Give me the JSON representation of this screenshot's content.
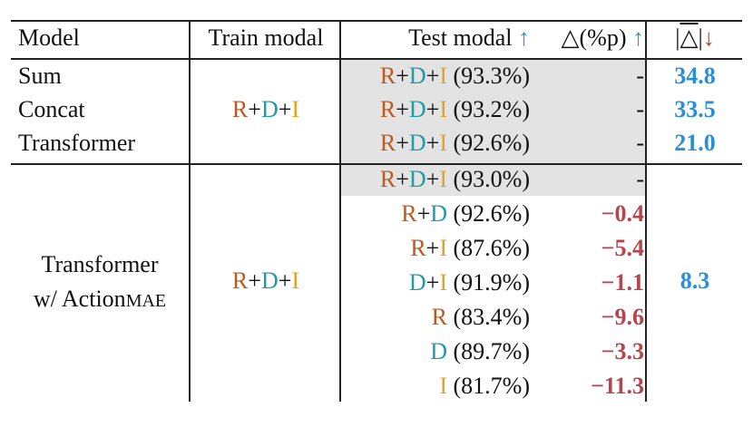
{
  "header": {
    "model": "Model",
    "train_modal": "Train modal",
    "test_modal": "Test modal",
    "test_arrow": "↑",
    "delta": "△(%p)",
    "delta_arrow": "↑",
    "abs_open": "|",
    "abs_symbol": "△",
    "abs_close": "|",
    "abs_arrow": "↓"
  },
  "modalities": {
    "R": "R",
    "D": "D",
    "I": "I",
    "plus": "+"
  },
  "group1": {
    "train": "R+D+I",
    "rows": [
      {
        "model": "Sum",
        "test_acc": "(93.3%)",
        "delta": "-",
        "abs": "34.8"
      },
      {
        "model": "Concat",
        "test_acc": "(93.2%)",
        "delta": "-",
        "abs": "33.5"
      },
      {
        "model": "Transformer",
        "test_acc": "(92.6%)",
        "delta": "-",
        "abs": "21.0"
      }
    ]
  },
  "group2": {
    "model_line1": "Transformer",
    "model_line2_prefix": "w/ Action",
    "model_line2_sc": "MAE",
    "train": "R+D+I",
    "abs": "8.3",
    "rows": [
      {
        "test_acc": "(93.0%)",
        "delta": "-"
      },
      {
        "test_acc": "(92.6%)",
        "delta": "−0.4"
      },
      {
        "test_acc": "(87.6%)",
        "delta": "−5.4"
      },
      {
        "test_acc": "(91.9%)",
        "delta": "−1.1"
      },
      {
        "test_acc": "(83.4%)",
        "delta": "−9.6"
      },
      {
        "test_acc": "(89.7%)",
        "delta": "−3.3"
      },
      {
        "test_acc": "(81.7%)",
        "delta": "−11.3"
      }
    ]
  },
  "colors": {
    "R": "#c0581c",
    "D": "#1f9aa8",
    "I": "#e6a020",
    "blue": "#2b8fd6",
    "red": "#b5454e",
    "shade": "#e3e3e3"
  }
}
